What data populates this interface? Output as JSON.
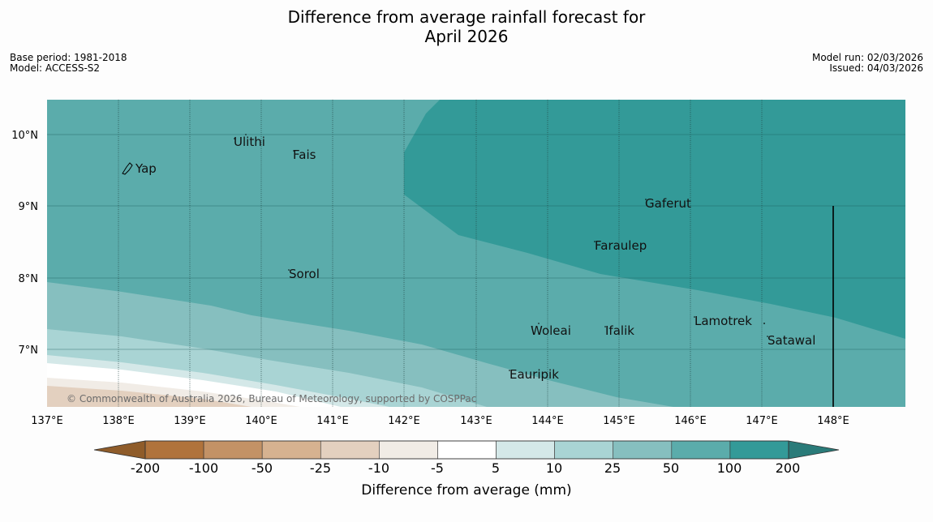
{
  "title": {
    "line1": "Difference from average rainfall forecast for",
    "line2": "April 2026"
  },
  "info_left": {
    "base_period": "Base period: 1981-2018",
    "model": "Model: ACCESS-S2"
  },
  "info_right": {
    "model_run": "Model run: 02/03/2026",
    "issued": "Issued: 04/03/2026"
  },
  "map": {
    "lat_labels": [
      "10°N",
      "9°N",
      "8°N",
      "7°N"
    ],
    "lon_labels": [
      "137°E",
      "138°E",
      "139°E",
      "140°E",
      "141°E",
      "142°E",
      "143°E",
      "144°E",
      "145°E",
      "146°E",
      "147°E",
      "148°E"
    ],
    "places": [
      "Ulithi",
      "Fais",
      "Yap",
      "Gaferut",
      "Faraulep",
      "Sorol",
      "Woleai",
      "Ifalik",
      "Lamotrek",
      "Satawal",
      "Eauripik"
    ],
    "copyright": "© Commonwealth of Australia 2026, Bureau of Meteorology, supported by COSPPac"
  },
  "legend": {
    "ticks": [
      "-200",
      "-100",
      "-50",
      "-25",
      "-10",
      "-5",
      "5",
      "10",
      "25",
      "50",
      "100",
      "200"
    ],
    "label": "Difference from average (mm)",
    "colors": {
      "below_min": "#8f5c2a",
      "bins": [
        "#b0733c",
        "#c39266",
        "#d6b290",
        "#e3d0bf",
        "#f1ece6",
        "#ffffff",
        "#d4e8e8",
        "#a9d4d4",
        "#86bfbf",
        "#5bacab",
        "#339a98"
      ],
      "above_max": "#2a7b79"
    }
  }
}
